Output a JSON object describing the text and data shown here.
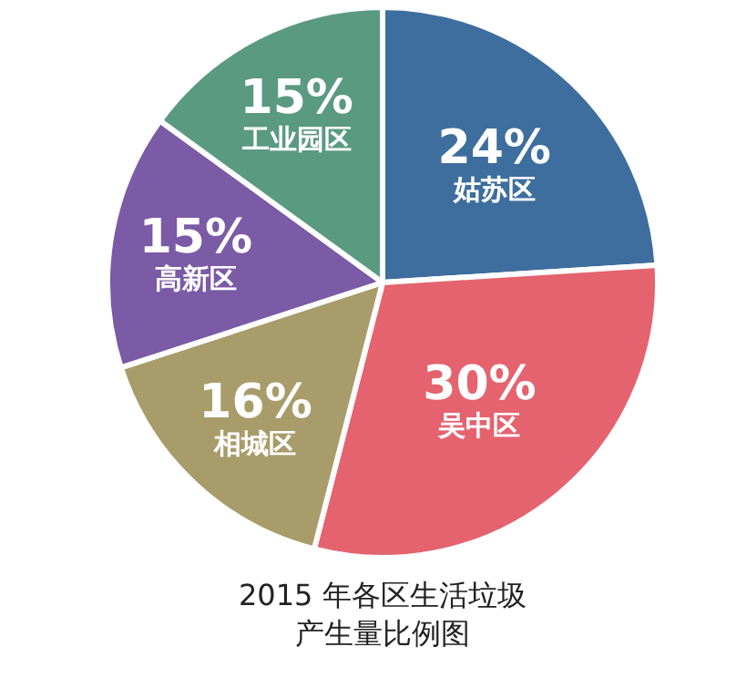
{
  "chart_data": {
    "type": "pie",
    "title": "2015 年各区生活垃圾产生量比例图",
    "categories": [
      "姑苏区",
      "吴中区",
      "相城区",
      "高新区",
      "工业园区"
    ],
    "values": [
      24,
      30,
      16,
      15,
      15
    ],
    "value_labels": [
      "24%",
      "30%",
      "16%",
      "15%",
      "15%"
    ],
    "colors": [
      "#3d6e9e",
      "#e4636f",
      "#a89c6a",
      "#7b5aa6",
      "#5a9a80"
    ],
    "legend": false
  }
}
